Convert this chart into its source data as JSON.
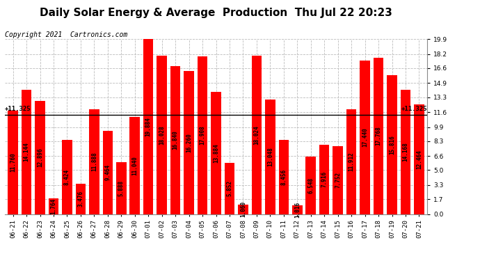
{
  "title": "Daily Solar Energy & Average  Production  Thu Jul 22 20:23",
  "copyright": "Copyright 2021  Cartronics.com",
  "average_value": 11.325,
  "categories": [
    "06-21",
    "06-22",
    "06-23",
    "06-24",
    "06-25",
    "06-26",
    "06-27",
    "06-28",
    "06-29",
    "06-30",
    "07-01",
    "07-02",
    "07-03",
    "07-04",
    "07-05",
    "07-06",
    "07-07",
    "07-08",
    "07-09",
    "07-10",
    "07-11",
    "07-12",
    "07-13",
    "07-14",
    "07-15",
    "07-16",
    "07-17",
    "07-18",
    "07-19",
    "07-20",
    "07-21"
  ],
  "values": [
    11.76,
    14.144,
    12.896,
    1.764,
    8.424,
    3.476,
    11.888,
    9.464,
    5.888,
    11.04,
    19.884,
    18.028,
    16.84,
    16.26,
    17.908,
    13.884,
    5.852,
    1.06,
    18.024,
    13.048,
    8.456,
    1.016,
    6.548,
    7.916,
    7.752,
    11.912,
    17.44,
    17.768,
    15.816,
    14.168,
    12.464
  ],
  "bar_color": "#ff0000",
  "avg_line_color": "#000000",
  "grid_color": "#bbbbbb",
  "background_color": "#ffffff",
  "text_color": "#000000",
  "ylim": [
    0.0,
    19.9
  ],
  "yticks": [
    0.0,
    1.7,
    3.3,
    5.0,
    6.6,
    8.3,
    9.9,
    11.6,
    13.3,
    14.9,
    16.6,
    18.2,
    19.9
  ],
  "title_fontsize": 11,
  "copyright_fontsize": 7,
  "tick_fontsize": 6.5,
  "bar_label_fontsize": 5.5,
  "legend_fontsize": 8
}
